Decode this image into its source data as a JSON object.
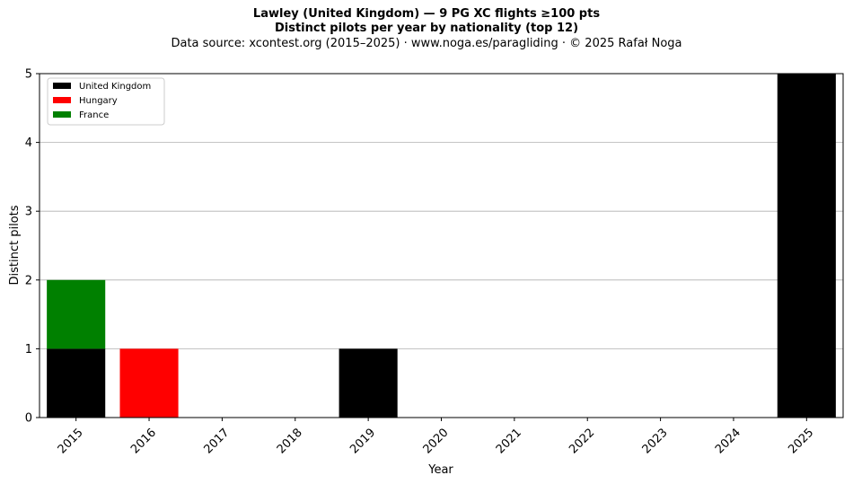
{
  "chart_data": {
    "type": "bar",
    "stacked": true,
    "title": "Lawley (United Kingdom)  —  9 PG XC flights ≥100 pts",
    "subtitle": "Distinct pilots per year by nationality (top 12)",
    "source": "Data source: xcontest.org (2015–2025)  ·  www.noga.es/paragliding  ·  © 2025 Rafał Noga",
    "xlabel": "Year",
    "ylabel": "Distinct pilots",
    "ylim": [
      0,
      5
    ],
    "yticks": [
      0,
      1,
      2,
      3,
      4,
      5
    ],
    "grid": "y",
    "legend_position": "top-left",
    "categories": [
      "2015",
      "2016",
      "2017",
      "2018",
      "2019",
      "2020",
      "2021",
      "2022",
      "2023",
      "2024",
      "2025"
    ],
    "series": [
      {
        "name": "United Kingdom",
        "color": "#000000",
        "values": [
          1,
          0,
          0,
          0,
          1,
          0,
          0,
          0,
          0,
          0,
          5
        ]
      },
      {
        "name": "Hungary",
        "color": "#ff0000",
        "values": [
          0,
          1,
          0,
          0,
          0,
          0,
          0,
          0,
          0,
          0,
          0
        ]
      },
      {
        "name": "France",
        "color": "#008000",
        "values": [
          1,
          0,
          0,
          0,
          0,
          0,
          0,
          0,
          0,
          0,
          0
        ]
      }
    ]
  }
}
